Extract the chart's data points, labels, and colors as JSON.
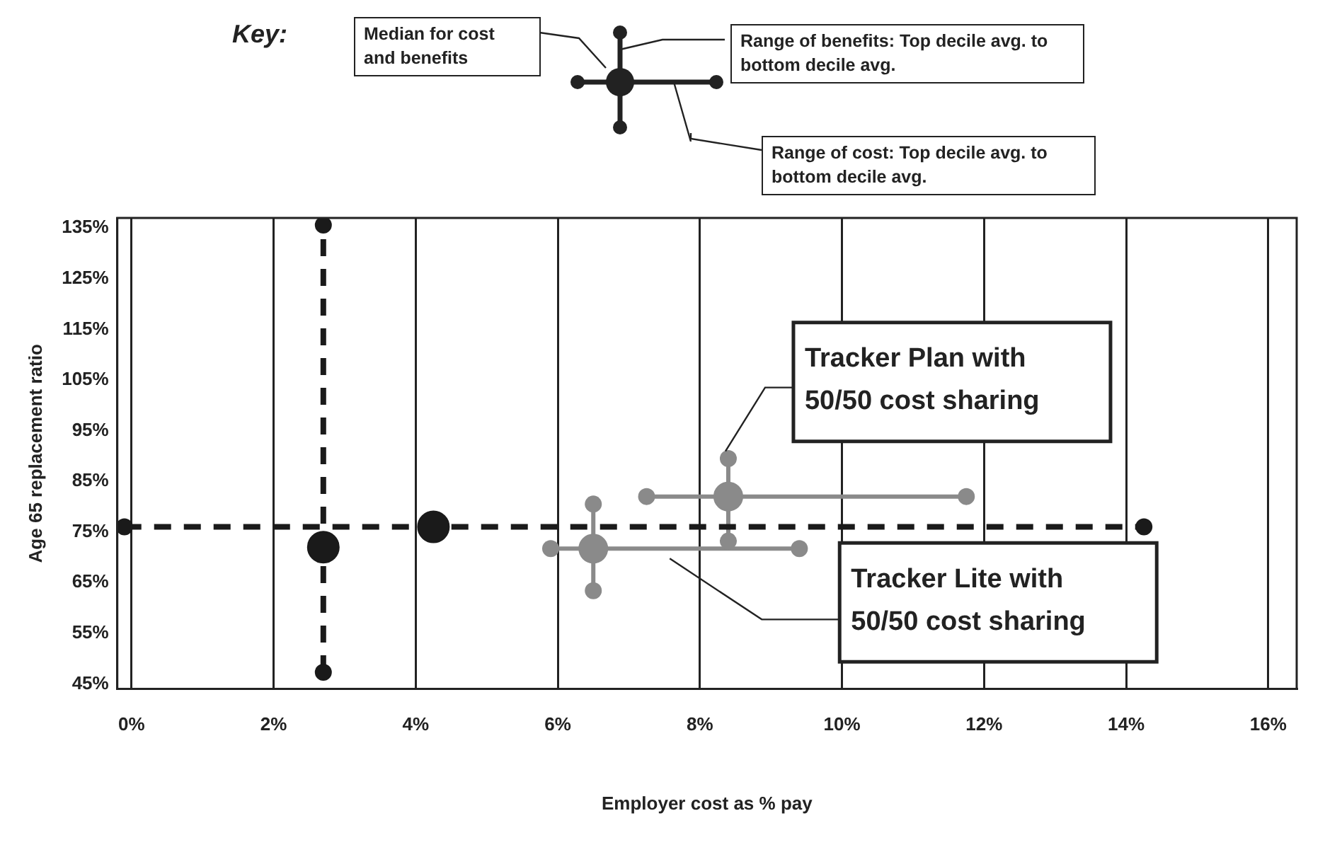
{
  "chart_data": {
    "type": "scatter",
    "xlabel": "Employer cost as % pay",
    "ylabel": "Age 65 replacement ratio",
    "xlim": [
      -0.2,
      16.4
    ],
    "xticks": [
      {
        "value": 0,
        "label": "0%"
      },
      {
        "value": 2,
        "label": "2%"
      },
      {
        "value": 4,
        "label": "4%"
      },
      {
        "value": 6,
        "label": "6%"
      },
      {
        "value": 8,
        "label": "8%"
      },
      {
        "value": 10,
        "label": "10%"
      },
      {
        "value": 12,
        "label": "12%"
      },
      {
        "value": 14,
        "label": "14%"
      },
      {
        "value": 16,
        "label": "16%"
      }
    ],
    "ylim": [
      44,
      137
    ],
    "yticks": [
      {
        "value": 45,
        "label": "45%"
      },
      {
        "value": 55,
        "label": "55%"
      },
      {
        "value": 65,
        "label": "65%"
      },
      {
        "value": 75,
        "label": "75%"
      },
      {
        "value": 85,
        "label": "85%"
      },
      {
        "value": 95,
        "label": "95%"
      },
      {
        "value": 105,
        "label": "105%"
      },
      {
        "value": 115,
        "label": "115%"
      },
      {
        "value": 125,
        "label": "125%"
      },
      {
        "value": 135,
        "label": "135%"
      }
    ],
    "grid": "x",
    "legend": false,
    "marker": "circle",
    "annotations": [
      "Key:",
      "Median for cost and benefits",
      "Range of benefits: Top decile avg. to bottom decile avg.",
      "Range of cost: Top decile avg. to bottom decile avg."
    ],
    "series": [
      {
        "color": "#1a1a1a",
        "x": [
          2.7,
          4.25
        ],
        "values": [
          72,
          76
        ]
      },
      {
        "type": "line",
        "color": "#1a1a1a",
        "x": [
          2.7,
          2.7
        ],
        "values": [
          47.3,
          135.6
        ],
        "line_style": "dashed"
      },
      {
        "type": "line",
        "color": "#1a1a1a",
        "x": [
          -0.1,
          14.25
        ],
        "values": [
          76,
          76
        ],
        "line_style": "dashed"
      },
      {
        "name": "Tracker Plan with 50/50 cost sharing",
        "color": "#8a8a8a",
        "x": [
          8.4
        ],
        "values": [
          82
        ]
      },
      {
        "type": "line",
        "color": "#8a8a8a",
        "x": [
          7.25,
          11.75
        ],
        "values": [
          82,
          82
        ],
        "line_style": "solid"
      },
      {
        "type": "line",
        "color": "#8a8a8a",
        "x": [
          8.4,
          8.4
        ],
        "values": [
          73.2,
          89.5
        ],
        "line_style": "solid"
      },
      {
        "name": "Tracker Lite with 50/50 cost sharing",
        "color": "#8a8a8a",
        "x": [
          6.5
        ],
        "values": [
          71.7
        ]
      },
      {
        "type": "line",
        "color": "#8a8a8a",
        "x": [
          5.9,
          9.4
        ],
        "values": [
          71.7,
          71.7
        ],
        "line_style": "solid"
      },
      {
        "type": "line",
        "color": "#8a8a8a",
        "x": [
          6.5,
          6.5
        ],
        "values": [
          63.4,
          80.5
        ],
        "line_style": "solid"
      }
    ]
  }
}
